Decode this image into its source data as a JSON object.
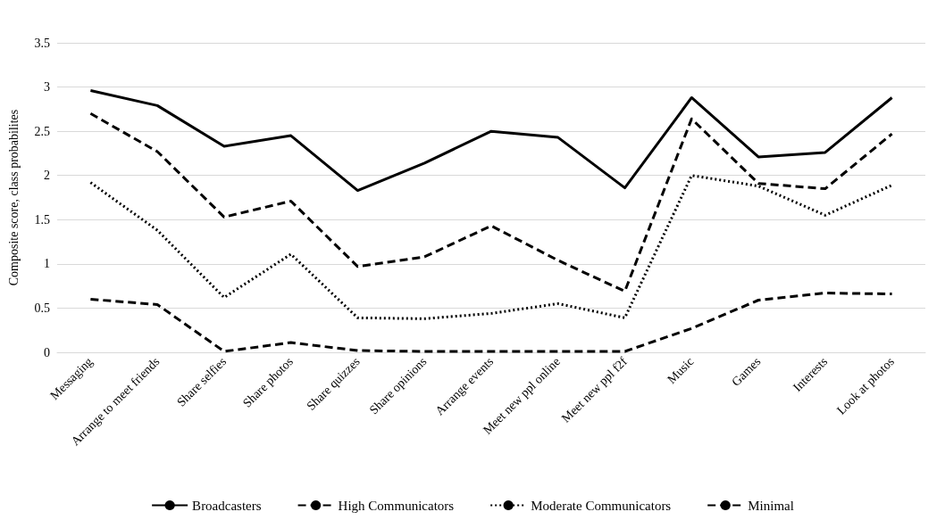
{
  "chart_data": {
    "type": "line",
    "ylabel": "Composite score, class probabilites",
    "categories": [
      "Messaging",
      "Arrange to meet friends",
      "Share selfies",
      "Share photos",
      "Share quizzes",
      "Share opinions",
      "Arrange events",
      "Meet new ppl online",
      "Meet new ppl f2f",
      "Music",
      "Games",
      "Interests",
      "Look at photos"
    ],
    "series": [
      {
        "name": "Broadcasters",
        "color": "#000000",
        "line_style": "solid",
        "values": [
          2.96,
          2.79,
          2.33,
          2.45,
          1.83,
          2.14,
          2.5,
          2.43,
          1.86,
          2.88,
          2.21,
          2.26,
          2.88
        ]
      },
      {
        "name": "High Communicators",
        "color": "#000000",
        "line_style": "dashed",
        "values": [
          2.7,
          2.27,
          1.53,
          1.71,
          0.97,
          1.08,
          1.43,
          1.04,
          0.69,
          2.64,
          1.91,
          1.85,
          2.47
        ]
      },
      {
        "name": "Moderate Communicators",
        "color": "#000000",
        "line_style": "dotted",
        "values": [
          1.92,
          1.38,
          0.62,
          1.11,
          0.39,
          0.38,
          0.44,
          0.55,
          0.39,
          2.0,
          1.88,
          1.55,
          1.89
        ]
      },
      {
        "name": "Minimal",
        "color": "#000000",
        "line_style": "dashed",
        "values": [
          0.6,
          0.54,
          0.01,
          0.11,
          0.02,
          0.01,
          0.01,
          0.01,
          0.01,
          0.27,
          0.59,
          0.67,
          0.66
        ]
      }
    ],
    "ylim": [
      0,
      3.5
    ],
    "yticks": [
      0,
      0.5,
      1,
      1.5,
      2,
      2.5,
      3,
      3.5
    ],
    "grid": "y",
    "legend": "bottom",
    "marker": "none"
  }
}
